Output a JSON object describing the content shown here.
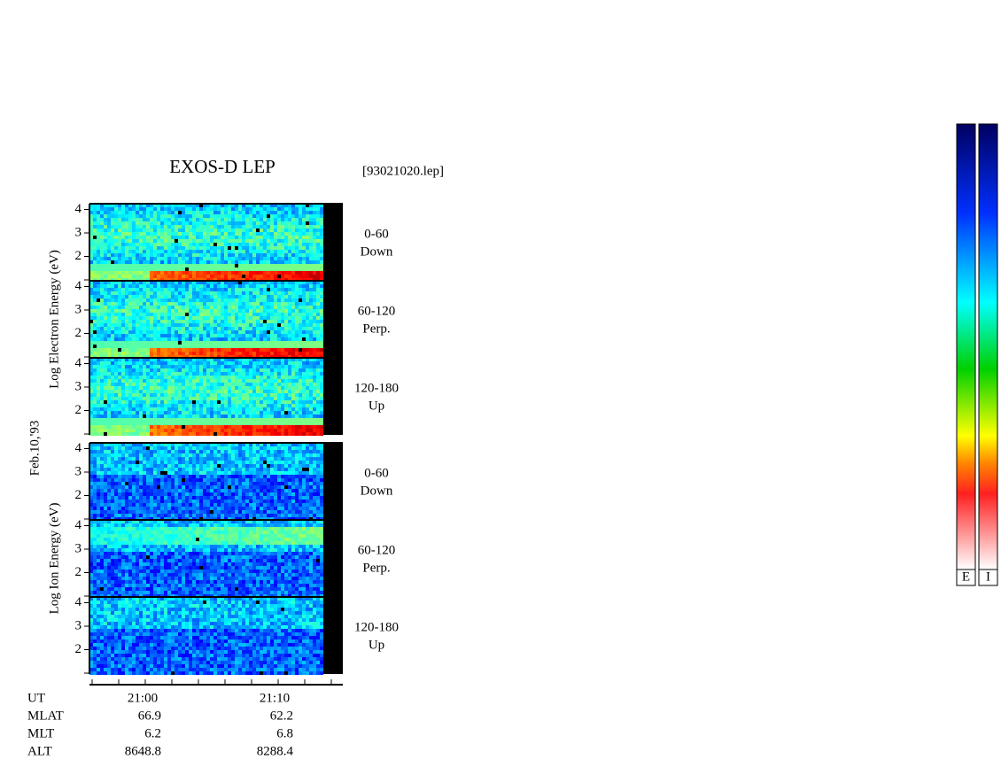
{
  "header": {
    "title": "EXOS-D LEP",
    "file": "[93021020.lep]"
  },
  "date": "Feb.10,'93",
  "yticks": [
    2,
    3,
    4
  ],
  "groups": [
    {
      "label": "Log  Electron  Energy (eV)",
      "panels": [
        {
          "angle": "0-60",
          "direction": "Down"
        },
        {
          "angle": "60-120",
          "direction": "Perp."
        },
        {
          "angle": "120-180",
          "direction": "Up"
        }
      ]
    },
    {
      "label": "Log  Ion  Energy (eV)",
      "panels": [
        {
          "angle": "0-60",
          "direction": "Down"
        },
        {
          "angle": "60-120",
          "direction": "Perp."
        },
        {
          "angle": "120-180",
          "direction": "Up"
        }
      ]
    }
  ],
  "ephemeris": {
    "rows": [
      {
        "name": "UT",
        "values": [
          "21:00",
          "21:10"
        ]
      },
      {
        "name": "MLAT",
        "values": [
          "66.9",
          "62.2"
        ]
      },
      {
        "name": "MLT",
        "values": [
          "6.2",
          "6.8"
        ]
      },
      {
        "name": "ALT",
        "values": [
          "8648.8",
          "8288.4"
        ]
      }
    ]
  },
  "colorbars": [
    "E",
    "I"
  ]
}
